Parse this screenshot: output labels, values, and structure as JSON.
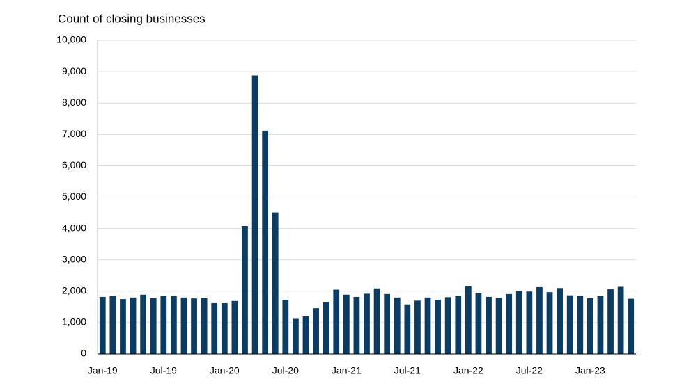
{
  "chart_data": {
    "type": "bar",
    "title": "Count of closing businesses",
    "categories": [
      "Jan-19",
      null,
      null,
      null,
      null,
      null,
      "Jul-19",
      null,
      null,
      null,
      null,
      null,
      "Jan-20",
      null,
      null,
      null,
      null,
      null,
      "Jul-20",
      null,
      null,
      null,
      null,
      null,
      "Jan-21",
      null,
      null,
      null,
      null,
      null,
      "Jul-21",
      null,
      null,
      null,
      null,
      null,
      "Jan-22",
      null,
      null,
      null,
      null,
      null,
      "Jul-22",
      null,
      null,
      null,
      null,
      null,
      "Jan-23",
      null,
      null,
      null,
      null
    ],
    "values": [
      1820,
      1850,
      1750,
      1800,
      1890,
      1790,
      1850,
      1840,
      1800,
      1770,
      1780,
      1620,
      1620,
      1690,
      4080,
      8880,
      7120,
      4510,
      1730,
      1120,
      1200,
      1460,
      1650,
      2050,
      1890,
      1820,
      1920,
      2090,
      1910,
      1800,
      1580,
      1700,
      1800,
      1730,
      1810,
      1860,
      2150,
      1930,
      1820,
      1780,
      1910,
      2010,
      1990,
      2130,
      1970,
      2100,
      1870,
      1860,
      1780,
      1840,
      2060,
      2140,
      1760
    ],
    "color": "#0b3c64",
    "ylim": [
      0,
      10000
    ],
    "yticks": [
      0,
      {
        "value": 1000,
        "label": "1,000"
      },
      {
        "value": 2000,
        "label": "2,000"
      },
      {
        "value": 3000,
        "label": "3,000"
      },
      {
        "value": 4000,
        "label": "4,000"
      },
      {
        "value": 5000,
        "label": "5,000"
      },
      {
        "value": 6000,
        "label": "6,000"
      },
      {
        "value": 7000,
        "label": "7,000"
      },
      {
        "value": 8000,
        "label": "8,000"
      },
      {
        "value": 9000,
        "label": "9,000"
      },
      {
        "value": 10000,
        "label": "10,000"
      }
    ],
    "grid": true
  }
}
